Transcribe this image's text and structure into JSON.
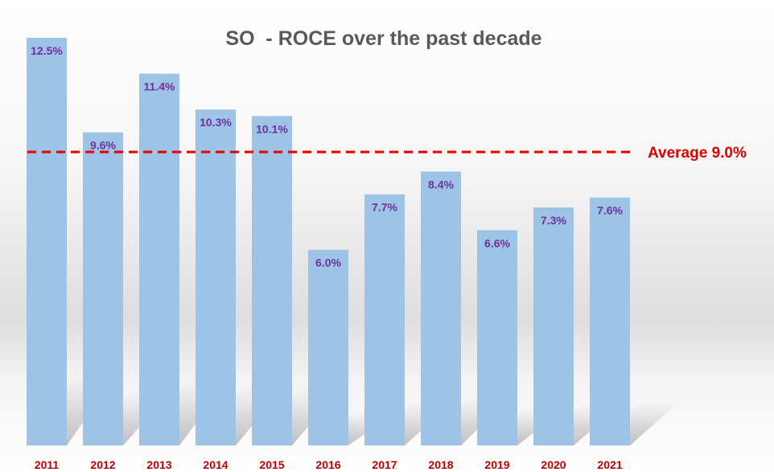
{
  "chart_data": {
    "type": "bar",
    "title": "SO  - ROCE over the past decade",
    "categories": [
      "2011",
      "2012",
      "2013",
      "2014",
      "2015",
      "2016",
      "2017",
      "2018",
      "2019",
      "2020",
      "2021"
    ],
    "values": [
      12.5,
      9.6,
      11.4,
      10.3,
      10.1,
      6.0,
      7.7,
      8.4,
      6.6,
      7.3,
      7.6
    ],
    "data_labels": [
      "12.5%",
      "9.6%",
      "11.4%",
      "10.3%",
      "10.1%",
      "6.0%",
      "7.7%",
      "8.4%",
      "6.6%",
      "7.3%",
      "7.6%"
    ],
    "ylim": [
      0,
      12.5
    ],
    "unit": "%",
    "xlabel": "",
    "ylabel": "",
    "grid": false,
    "reference_line": {
      "value": 9.0,
      "label": "Average 9.0%",
      "style": "dashed"
    },
    "colors": {
      "bar": "#9dc3e6",
      "data_label": "#7030a0",
      "x_tick": "#c00000",
      "reference_line": "#e00000",
      "title": "#595959"
    }
  }
}
